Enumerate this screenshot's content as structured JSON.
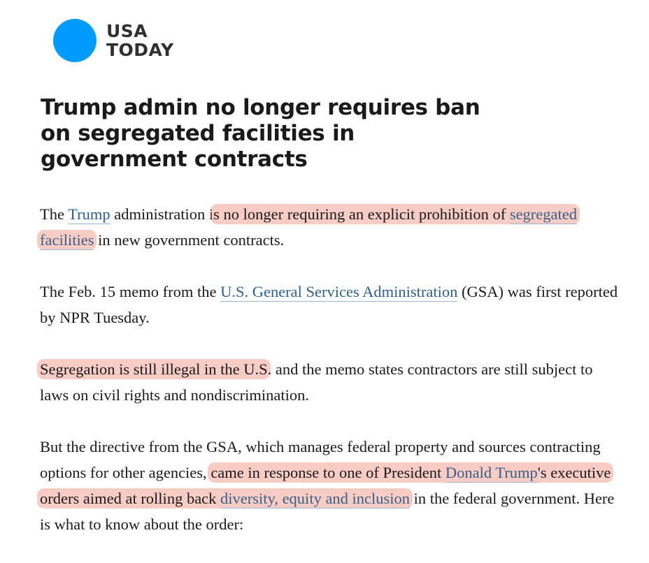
{
  "brand": {
    "line1": "USA",
    "line2": "TODAY",
    "circle_color": "#009bff"
  },
  "headline": "Trump admin no longer requires ban on segregated facilities in government contracts",
  "p1": {
    "s1": "The ",
    "link1": "Trump",
    "s2": " administration i",
    "hl1": "s no longer requiring an explicit prohibition of ",
    "hl_link": "segregated facilities",
    "s3": " in new government contracts."
  },
  "p2": {
    "s1": "The Feb. 15 memo from the ",
    "link1": "U.S. General Services Administration",
    "s2": " (GSA) was first reported by NPR Tuesday."
  },
  "p3": {
    "hl1": "Segregation is still illegal in the U.S",
    "s1": ". and the memo states contractors are still subject to laws on civil rights and nondiscrimination."
  },
  "p4": {
    "s1": "But the directive from the GSA, which manages federal property and sources contracting options for other agencies, ",
    "hl1": "came in response to one of President ",
    "hl_link1": "Donald Trump",
    "hl2": "'s executive orders aimed at rolling back ",
    "hl_link2": "diversity, equity and inclusion",
    "s2": " in the federal government. Here is what to know about the order:"
  },
  "colors": {
    "link": "#2b5f8c",
    "highlight": "rgba(235,120,100,0.38)"
  }
}
